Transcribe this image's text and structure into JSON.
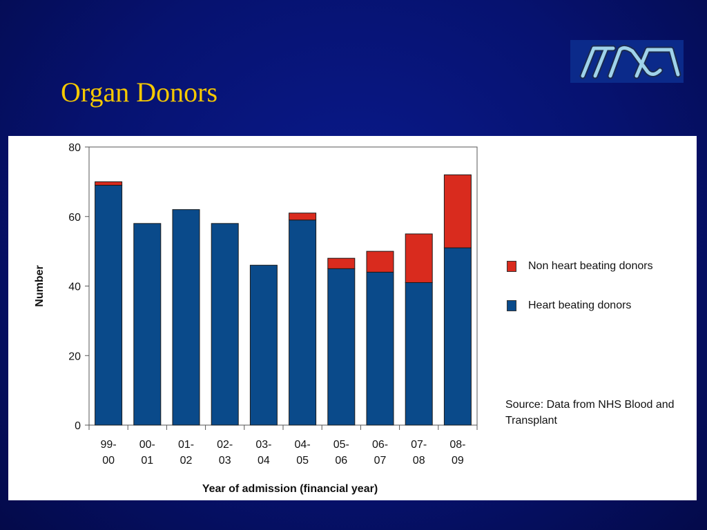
{
  "slide": {
    "title": "Organ Donors"
  },
  "logo": {
    "icon": "organisation-logo-icon",
    "color": "#9fd3ea"
  },
  "chart_data": {
    "type": "bar",
    "stacked": true,
    "title": "",
    "xlabel": "Year of admission (financial year)",
    "ylabel": "Number",
    "ylim": [
      0,
      80
    ],
    "yticks": [
      0,
      20,
      40,
      60,
      80
    ],
    "categories": [
      [
        "99-",
        "00"
      ],
      [
        "00-",
        "01"
      ],
      [
        "01-",
        "02"
      ],
      [
        "02-",
        "03"
      ],
      [
        "03-",
        "04"
      ],
      [
        "04-",
        "05"
      ],
      [
        "05-",
        "06"
      ],
      [
        "06-",
        "07"
      ],
      [
        "07-",
        "08"
      ],
      [
        "08-",
        "09"
      ]
    ],
    "series": [
      {
        "name": "Heart beating donors",
        "color": "#0a4a8a",
        "values": [
          69,
          58,
          62,
          58,
          46,
          59,
          45,
          44,
          41,
          51
        ]
      },
      {
        "name": "Non heart beating donors",
        "color": "#d92b1e",
        "values": [
          1,
          0,
          0,
          0,
          0,
          2,
          3,
          6,
          14,
          21
        ]
      }
    ],
    "legend_position": "right",
    "grid": false
  },
  "source_note": "Source: Data from NHS Blood and Transplant"
}
